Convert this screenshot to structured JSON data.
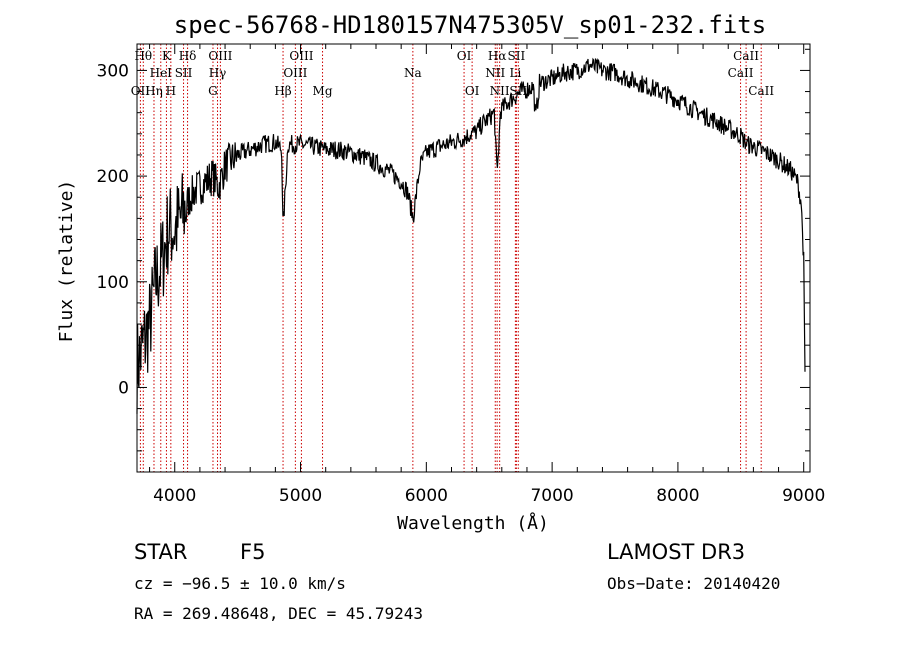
{
  "chart_data": {
    "type": "line",
    "title": "spec-56768-HD180157N475305V_sp01-232.fits",
    "xlabel": "Wavelength (Å)",
    "ylabel": "Flux (relative)",
    "xlim": [
      3700,
      9050
    ],
    "ylim": [
      -80,
      325
    ],
    "xticks": [
      4000,
      5000,
      6000,
      7000,
      8000,
      9000
    ],
    "xtick_labels": [
      "4000",
      "5000",
      "6000",
      "7000",
      "8000",
      "9000"
    ],
    "yticks": [
      0,
      100,
      200,
      300
    ],
    "ytick_labels": [
      "0",
      "100",
      "200",
      "300"
    ],
    "color": "#000000",
    "line_color": "#cc0000",
    "series": [
      {
        "name": "flux",
        "x": [
          3700,
          3750,
          3800,
          3850,
          3900,
          3950,
          4000,
          4050,
          4100,
          4150,
          4200,
          4250,
          4300,
          4350,
          4400,
          4500,
          4600,
          4700,
          4800,
          4850,
          4861,
          4900,
          5000,
          5100,
          5200,
          5300,
          5400,
          5500,
          5600,
          5700,
          5800,
          5850,
          5895,
          5950,
          6000,
          6100,
          6200,
          6300,
          6350,
          6400,
          6450,
          6500,
          6540,
          6563,
          6590,
          6650,
          6700,
          6750,
          6800,
          6850,
          6870,
          6900,
          7000,
          7100,
          7200,
          7300,
          7400,
          7500,
          7600,
          7700,
          7800,
          7900,
          8000,
          8100,
          8200,
          8300,
          8400,
          8500,
          8550,
          8600,
          8700,
          8800,
          8900,
          8950,
          8980,
          9000,
          9010
        ],
        "y": [
          20,
          40,
          60,
          100,
          120,
          150,
          150,
          160,
          175,
          185,
          190,
          195,
          200,
          190,
          210,
          220,
          225,
          230,
          232,
          225,
          150,
          230,
          230,
          228,
          225,
          225,
          222,
          218,
          212,
          205,
          195,
          185,
          160,
          210,
          222,
          228,
          232,
          236,
          240,
          242,
          250,
          255,
          260,
          200,
          262,
          270,
          275,
          280,
          282,
          285,
          255,
          288,
          292,
          298,
          300,
          305,
          300,
          298,
          292,
          288,
          283,
          278,
          272,
          265,
          258,
          252,
          245,
          238,
          230,
          228,
          222,
          215,
          205,
          195,
          175,
          120,
          10
        ]
      }
    ],
    "line_markers": [
      {
        "label": "Hθ",
        "x": 3750,
        "row": 0
      },
      {
        "label": "OII",
        "x": 3727,
        "row": 2
      },
      {
        "label": "Hη",
        "x": 3835,
        "row": 2
      },
      {
        "label": "HeI",
        "x": 3889,
        "row": 1
      },
      {
        "label": "K",
        "x": 3934,
        "row": 0
      },
      {
        "label": "H",
        "x": 3969,
        "row": 2
      },
      {
        "label": "SII",
        "x": 4070,
        "row": 1
      },
      {
        "label": "Hδ",
        "x": 4102,
        "row": 0
      },
      {
        "label": "OIII",
        "x": 4363,
        "row": 0
      },
      {
        "label": "Hγ",
        "x": 4340,
        "row": 1
      },
      {
        "label": "G",
        "x": 4304,
        "row": 2
      },
      {
        "label": "Hβ",
        "x": 4861,
        "row": 2
      },
      {
        "label": "OIII",
        "x": 5007,
        "row": 0
      },
      {
        "label": "OIII",
        "x": 4959,
        "row": 1
      },
      {
        "label": "Mg",
        "x": 5175,
        "row": 2
      },
      {
        "label": "Na",
        "x": 5893,
        "row": 1
      },
      {
        "label": "OI",
        "x": 6300,
        "row": 0
      },
      {
        "label": "OI",
        "x": 6364,
        "row": 2
      },
      {
        "label": "Hα",
        "x": 6563,
        "row": 0
      },
      {
        "label": "SII",
        "x": 6716,
        "row": 0
      },
      {
        "label": "NII",
        "x": 6548,
        "row": 1
      },
      {
        "label": "Li",
        "x": 6708,
        "row": 1
      },
      {
        "label": "NII",
        "x": 6583,
        "row": 2
      },
      {
        "label": "SII",
        "x": 6731,
        "row": 2
      },
      {
        "label": "CaII",
        "x": 8542,
        "row": 0
      },
      {
        "label": "CaII",
        "x": 8498,
        "row": 1
      },
      {
        "label": "CaII",
        "x": 8662,
        "row": 2
      }
    ]
  },
  "info": {
    "class_label": "STAR",
    "subclass_label": "F5",
    "survey": "LAMOST DR3",
    "cz": "cz = −96.5 ± 10.0 km/s",
    "obs_date": "Obs−Date: 20140420",
    "coords": "RA = 269.48648, DEC =  45.79243"
  }
}
